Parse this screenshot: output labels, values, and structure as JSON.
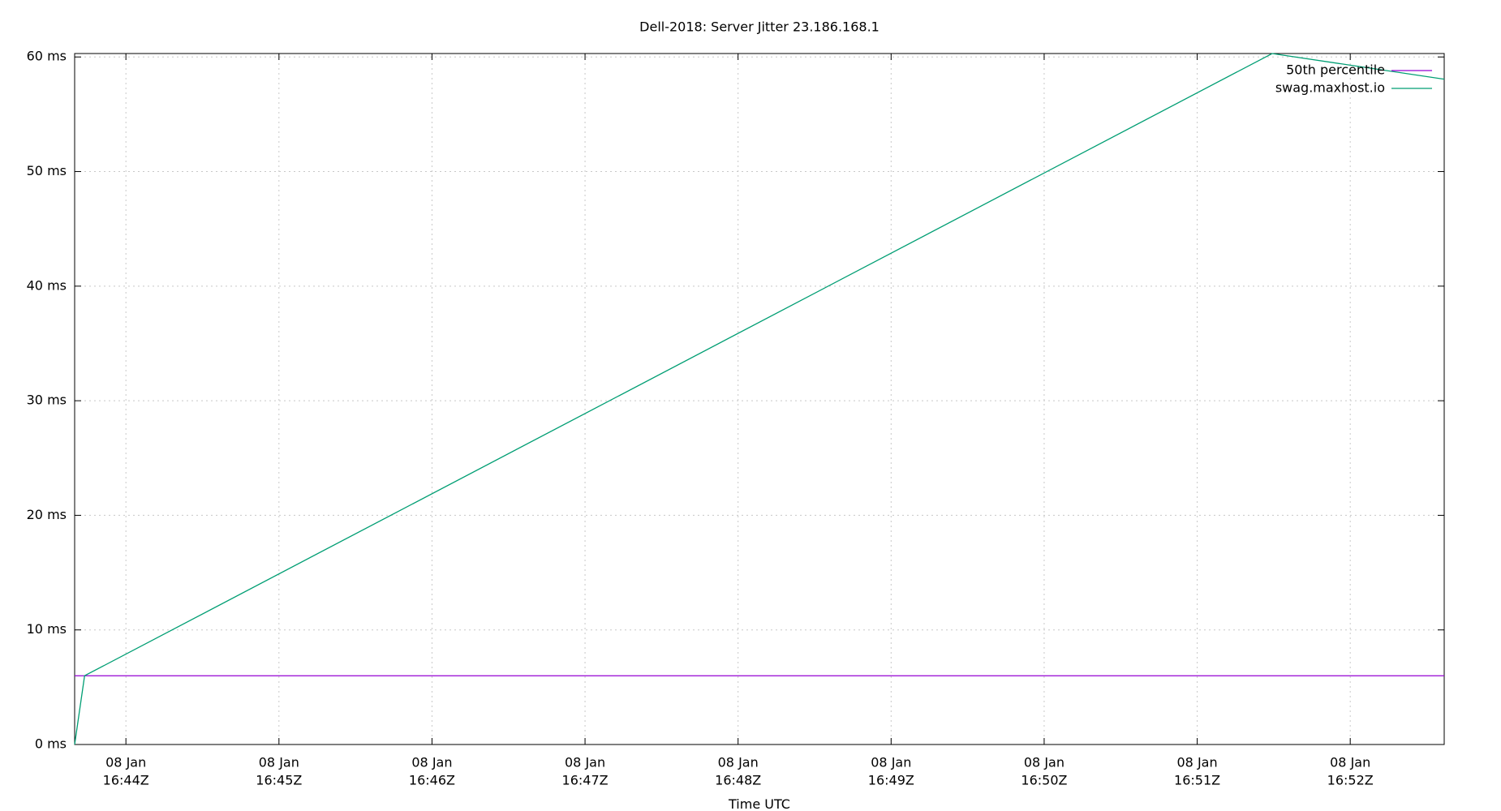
{
  "chart_data": {
    "type": "line",
    "title": "Dell-2018: Server Jitter 23.186.168.1",
    "x_label": "Time UTC",
    "xlim": [
      1003.665,
      1012.614
    ],
    "ylim": [
      0,
      60.3
    ],
    "xticks": [
      {
        "value": 1004,
        "label": [
          "08 Jan",
          "16:44Z"
        ]
      },
      {
        "value": 1005,
        "label": [
          "08 Jan",
          "16:45Z"
        ]
      },
      {
        "value": 1006,
        "label": [
          "08 Jan",
          "16:46Z"
        ]
      },
      {
        "value": 1007,
        "label": [
          "08 Jan",
          "16:47Z"
        ]
      },
      {
        "value": 1008,
        "label": [
          "08 Jan",
          "16:48Z"
        ]
      },
      {
        "value": 1009,
        "label": [
          "08 Jan",
          "16:49Z"
        ]
      },
      {
        "value": 1010,
        "label": [
          "08 Jan",
          "16:50Z"
        ]
      },
      {
        "value": 1011,
        "label": [
          "08 Jan",
          "16:51Z"
        ]
      },
      {
        "value": 1012,
        "label": [
          "08 Jan",
          "16:52Z"
        ]
      }
    ],
    "yticks": [
      {
        "value": 0,
        "label": "0 ms"
      },
      {
        "value": 10,
        "label": "10 ms"
      },
      {
        "value": 20,
        "label": "20 ms"
      },
      {
        "value": 30,
        "label": "30 ms"
      },
      {
        "value": 40,
        "label": "40 ms"
      },
      {
        "value": 50,
        "label": "50 ms"
      },
      {
        "value": 60,
        "label": "60 ms"
      }
    ],
    "grid": true,
    "legend": "top-right",
    "series": [
      {
        "name": "50th percentile",
        "color": "#9400d3",
        "x": [
          1003.665,
          1012.614
        ],
        "values": [
          6,
          6
        ]
      },
      {
        "name": "swag.maxhost.io",
        "color": "#009e73",
        "x": [
          1003.665,
          1003.73,
          1011.49,
          1012.614
        ],
        "values": [
          0,
          6,
          60.3,
          58.06
        ]
      }
    ]
  }
}
